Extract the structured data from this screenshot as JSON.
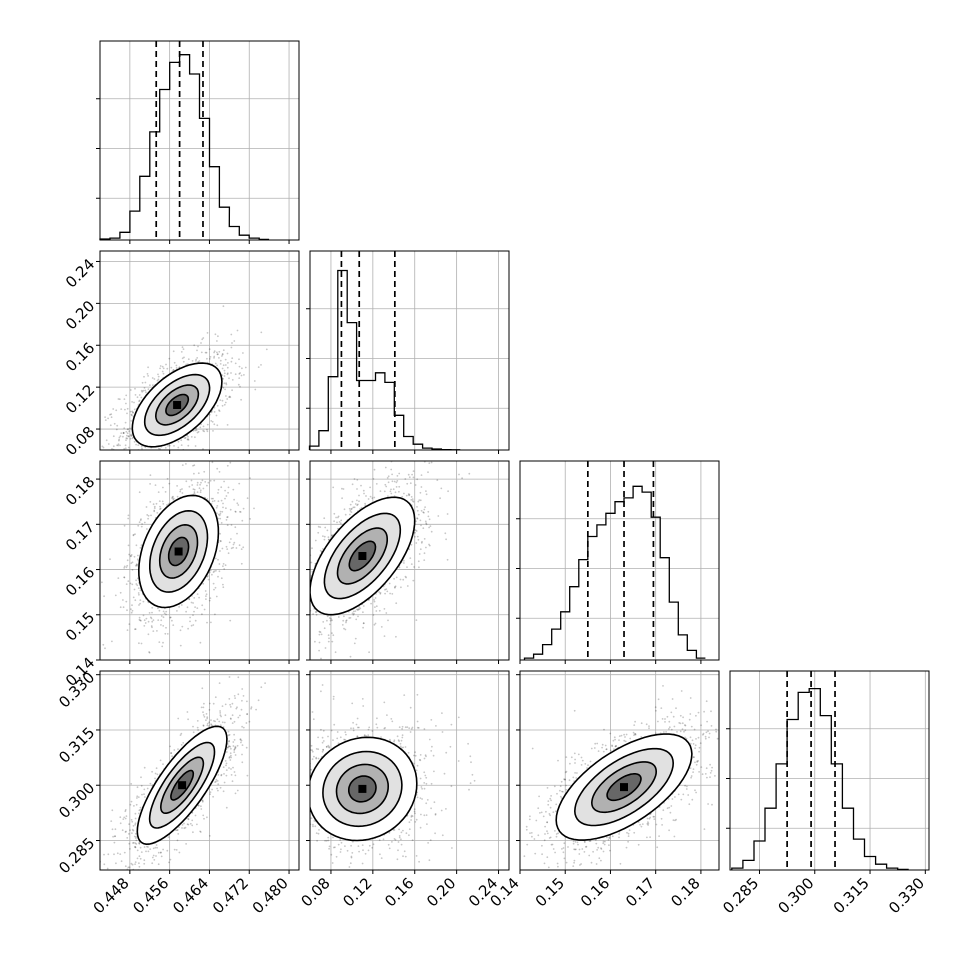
{
  "chart_data": {
    "type": "corner",
    "parameters": [
      {
        "index": 0,
        "range": [
          0.442,
          0.482
        ],
        "ticks": [
          0.448,
          0.456,
          0.464,
          0.472,
          0.48
        ],
        "tick_labels": [
          "0.448",
          "0.456",
          "0.464",
          "0.472",
          "0.480"
        ],
        "quantiles": [
          0.4533,
          0.458,
          0.4627
        ],
        "hist_x": [
          0.443,
          0.445,
          0.447,
          0.449,
          0.451,
          0.453,
          0.455,
          0.457,
          0.459,
          0.461,
          0.463,
          0.465,
          0.467,
          0.469,
          0.471,
          0.473,
          0.475
        ],
        "hist_y": [
          0.005,
          0.01,
          0.04,
          0.15,
          0.33,
          0.56,
          0.78,
          0.92,
          0.96,
          0.86,
          0.63,
          0.38,
          0.17,
          0.07,
          0.025,
          0.01,
          0.003
        ]
      },
      {
        "index": 1,
        "range": [
          0.06,
          0.25
        ],
        "ticks": [
          0.08,
          0.12,
          0.16,
          0.2,
          0.24
        ],
        "tick_labels": [
          "0.08",
          "0.12",
          "0.16",
          "0.20",
          "0.24"
        ],
        "quantiles": [
          0.09,
          0.107,
          0.141
        ],
        "hist_x": [
          0.064,
          0.073,
          0.082,
          0.091,
          0.1,
          0.109,
          0.118,
          0.127,
          0.136,
          0.145,
          0.154,
          0.163,
          0.172,
          0.181,
          0.19,
          0.199
        ],
        "hist_y": [
          0.02,
          0.1,
          0.38,
          0.93,
          0.66,
          0.36,
          0.36,
          0.4,
          0.35,
          0.18,
          0.07,
          0.03,
          0.01,
          0.005,
          0.002,
          0.001
        ]
      },
      {
        "index": 2,
        "range": [
          0.14,
          0.184
        ],
        "ticks": [
          0.14,
          0.15,
          0.16,
          0.17,
          0.18
        ],
        "tick_labels": [
          "0.14",
          "0.15",
          "0.16",
          "0.17",
          "0.18"
        ],
        "quantiles": [
          0.155,
          0.163,
          0.1695
        ],
        "hist_x": [
          0.142,
          0.144,
          0.146,
          0.148,
          0.15,
          0.152,
          0.154,
          0.156,
          0.158,
          0.16,
          0.162,
          0.164,
          0.166,
          0.168,
          0.17,
          0.172,
          0.174,
          0.176,
          0.178,
          0.18
        ],
        "hist_y": [
          0.01,
          0.03,
          0.08,
          0.16,
          0.25,
          0.38,
          0.52,
          0.64,
          0.7,
          0.76,
          0.82,
          0.84,
          0.9,
          0.87,
          0.74,
          0.53,
          0.3,
          0.13,
          0.05,
          0.01
        ]
      },
      {
        "index": 3,
        "range": [
          0.277,
          0.331
        ],
        "ticks": [
          0.285,
          0.3,
          0.315,
          0.33
        ],
        "tick_labels": [
          "0.285",
          "0.300",
          "0.315",
          "0.330"
        ],
        "quantiles": [
          0.2925,
          0.299,
          0.3055
        ],
        "hist_x": [
          0.279,
          0.282,
          0.285,
          0.288,
          0.291,
          0.294,
          0.297,
          0.3,
          0.303,
          0.306,
          0.309,
          0.312,
          0.315,
          0.318,
          0.321,
          0.324
        ],
        "hist_y": [
          0.01,
          0.05,
          0.15,
          0.32,
          0.55,
          0.78,
          0.92,
          0.94,
          0.8,
          0.55,
          0.32,
          0.16,
          0.07,
          0.03,
          0.01,
          0.003
        ]
      }
    ],
    "pairs": [
      {
        "row": 1,
        "col": 0,
        "center": [
          0.4575,
          0.103
        ],
        "spread": [
          0.0045,
          0.02
        ],
        "rho": 0.55
      },
      {
        "row": 2,
        "col": 0,
        "center": [
          0.4578,
          0.164
        ],
        "spread": [
          0.004,
          0.0062
        ],
        "rho": 0.35
      },
      {
        "row": 2,
        "col": 1,
        "center": [
          0.11,
          0.163
        ],
        "spread": [
          0.025,
          0.0065
        ],
        "rho": 0.6
      },
      {
        "row": 3,
        "col": 0,
        "center": [
          0.4585,
          0.3
        ],
        "spread": [
          0.0045,
          0.008
        ],
        "rho": 0.78
      },
      {
        "row": 3,
        "col": 1,
        "center": [
          0.11,
          0.299
        ],
        "spread": [
          0.026,
          0.007
        ],
        "rho": 0.1
      },
      {
        "row": 3,
        "col": 2,
        "center": [
          0.163,
          0.2995
        ],
        "spread": [
          0.0075,
          0.0072
        ],
        "rho": 0.62
      }
    ],
    "grid": true
  }
}
